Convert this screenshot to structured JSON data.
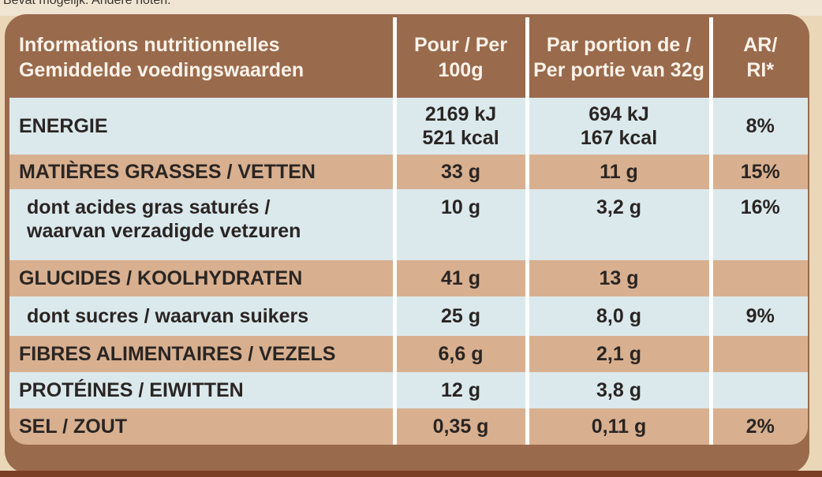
{
  "header_note": "Bevat mogelijk: Andere noten.",
  "headers": {
    "label_fr": "Informations nutritionnelles",
    "label_nl": "Gemiddelde voedingswaarden",
    "per100_line1": "Pour / Per",
    "per100_line2": "100g",
    "portion_line1": "Par portion de /",
    "portion_line2": "Per portie van 32g",
    "ri_line1": "AR/",
    "ri_line2": "RI*"
  },
  "rows": [
    {
      "label_line1": "ENERGIE",
      "label_line2": "",
      "per100_line1": "2169 kJ",
      "per100_line2": "521 kcal",
      "portion_line1": "694 kJ",
      "portion_line2": "167 kcal",
      "ri": "8%"
    },
    {
      "label_line1": "MATIÈRES GRASSES / VETTEN",
      "label_line2": "",
      "per100_line1": "33 g",
      "per100_line2": "",
      "portion_line1": "11 g",
      "portion_line2": "",
      "ri": "15%"
    },
    {
      "label_line1": "dont acides gras saturés /",
      "label_line2": "waarvan verzadigde vetzuren",
      "per100_line1": "10 g",
      "per100_line2": "",
      "portion_line1": "3,2 g",
      "portion_line2": "",
      "ri": "16%"
    },
    {
      "label_line1": "GLUCIDES / KOOLHYDRATEN",
      "label_line2": "",
      "per100_line1": "41 g",
      "per100_line2": "",
      "portion_line1": "13 g",
      "portion_line2": "",
      "ri": ""
    },
    {
      "label_line1": "dont sucres / waarvan suikers",
      "label_line2": "",
      "per100_line1": "25 g",
      "per100_line2": "",
      "portion_line1": "8,0 g",
      "portion_line2": "",
      "ri": "9%"
    },
    {
      "label_line1": "FIBRES ALIMENTAIRES / VEZELS",
      "label_line2": "",
      "per100_line1": "6,6 g",
      "per100_line2": "",
      "portion_line1": "2,1 g",
      "portion_line2": "",
      "ri": ""
    },
    {
      "label_line1": "PROTÉINES / EIWITTEN",
      "label_line2": "",
      "per100_line1": "12 g",
      "per100_line2": "",
      "portion_line1": "3,8 g",
      "portion_line2": "",
      "ri": ""
    },
    {
      "label_line1": "SEL / ZOUT",
      "label_line2": "",
      "per100_line1": "0,35 g",
      "per100_line2": "",
      "portion_line1": "0,11 g",
      "portion_line2": "",
      "ri": "2%"
    }
  ]
}
